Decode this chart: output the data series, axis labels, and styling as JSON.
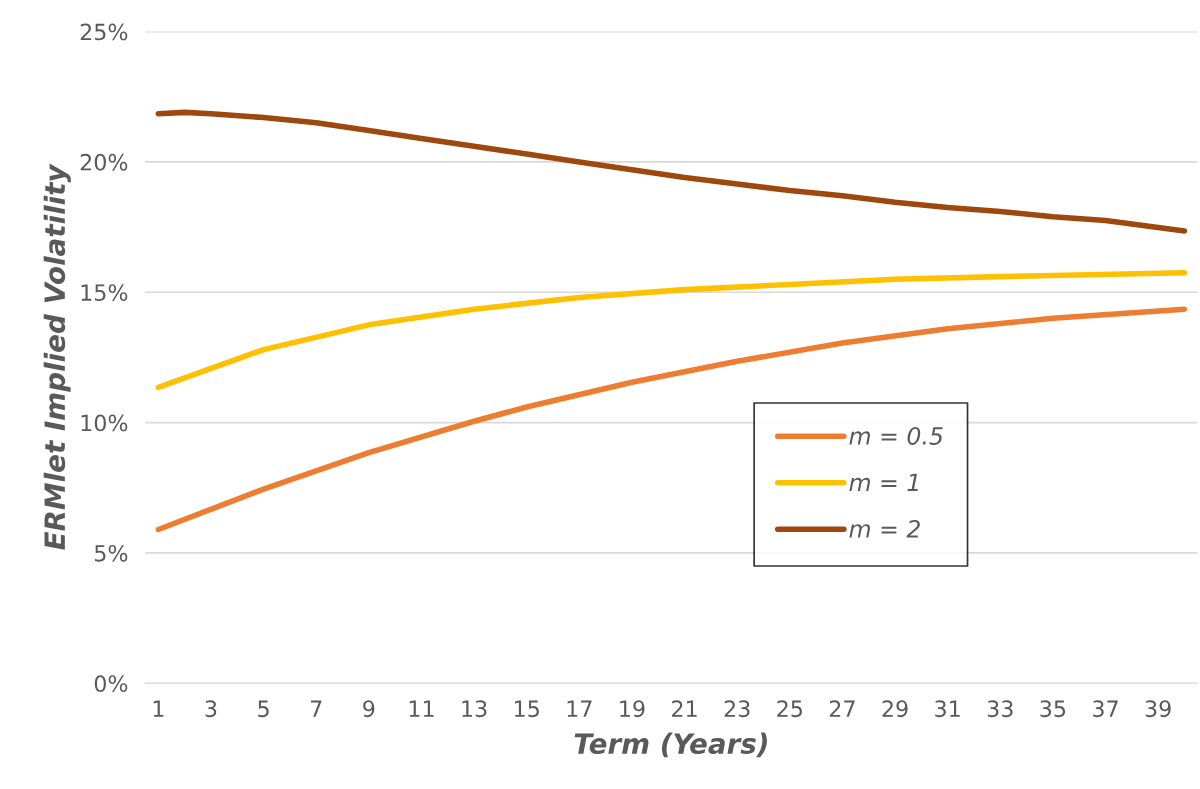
{
  "chart_data": {
    "type": "line",
    "xlabel": "Term (Years)",
    "ylabel": "ERMlet Implied Volatility",
    "xlim": [
      0.5,
      40.5
    ],
    "xticks": [
      1,
      3,
      5,
      7,
      9,
      11,
      13,
      15,
      17,
      19,
      21,
      23,
      25,
      27,
      29,
      31,
      33,
      35,
      37,
      39
    ],
    "ylim": [
      0,
      25
    ],
    "yticks": [
      {
        "value": 0,
        "label": "0%"
      },
      {
        "value": 5,
        "label": "5%"
      },
      {
        "value": 10,
        "label": "10%"
      },
      {
        "value": 15,
        "label": "15%"
      },
      {
        "value": 20,
        "label": "20%"
      },
      {
        "value": 25,
        "label": "25%"
      }
    ],
    "grid": "y",
    "legend": "right",
    "marker": "none",
    "line_style": "solid",
    "series": [
      {
        "name": "m = 0.5",
        "color": "#ed7d31",
        "x": [
          1,
          5,
          9,
          13,
          15,
          19,
          23,
          27,
          31,
          35,
          40
        ],
        "values": [
          5.9,
          7.45,
          8.85,
          10.05,
          10.6,
          11.55,
          12.35,
          13.05,
          13.6,
          14.0,
          14.35
        ]
      },
      {
        "name": "m = 1",
        "color": "#ffc000",
        "x": [
          1,
          5,
          9,
          13,
          17,
          21,
          25,
          29,
          33,
          40
        ],
        "values": [
          11.35,
          12.8,
          13.75,
          14.35,
          14.8,
          15.1,
          15.3,
          15.5,
          15.6,
          15.75
        ]
      },
      {
        "name": "m = 2",
        "color": "#9e480e",
        "x": [
          1,
          2,
          3,
          5,
          7,
          9,
          11,
          13,
          15,
          17,
          19,
          21,
          23,
          25,
          27,
          29,
          31,
          33,
          35,
          37,
          40
        ],
        "values": [
          21.85,
          21.9,
          21.85,
          21.7,
          21.5,
          21.2,
          20.9,
          20.6,
          20.3,
          20.0,
          19.7,
          19.4,
          19.15,
          18.9,
          18.7,
          18.45,
          18.25,
          18.1,
          17.9,
          17.75,
          17.35
        ]
      }
    ]
  }
}
